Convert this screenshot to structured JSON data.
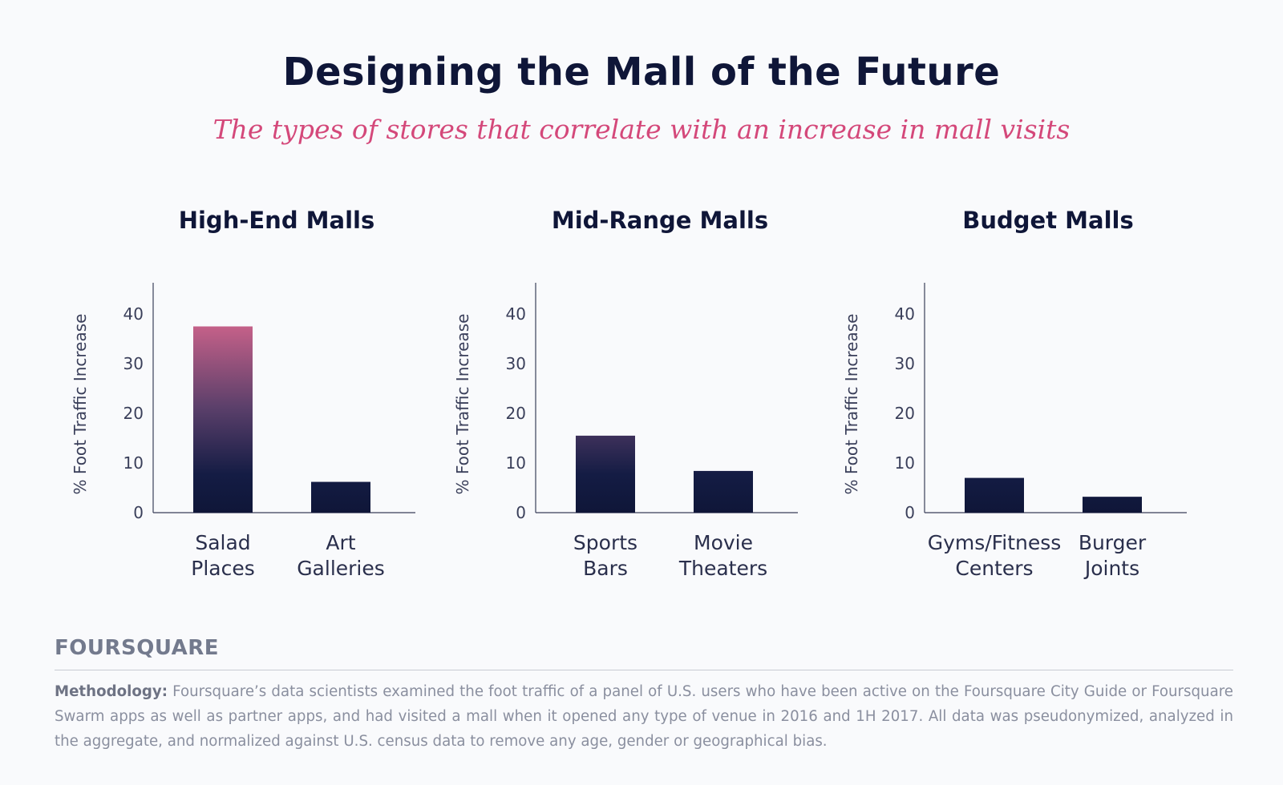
{
  "header": {
    "title": "Designing the Mall of the Future",
    "subtitle": "The types of stores that correlate with an increase in mall visits"
  },
  "colors": {
    "navy": "#0f1638",
    "pink": "#d4487a",
    "gradient_top_pink": "#c9628a",
    "gradient_bottom_navy": "#0f1638"
  },
  "chart_data": [
    {
      "type": "bar",
      "title": "High-End Malls",
      "ylabel": "% Foot Traffic Increase",
      "xlabel": "",
      "ylim": [
        0,
        45
      ],
      "yticks": [
        0,
        10,
        20,
        30,
        40
      ],
      "categories": [
        "Salad Places",
        "Art Galleries"
      ],
      "category_lines": [
        [
          "Salad",
          "Places"
        ],
        [
          "Art",
          "Galleries"
        ]
      ],
      "values": [
        37.5,
        6.2
      ],
      "grid": false
    },
    {
      "type": "bar",
      "title": "Mid-Range Malls",
      "ylabel": "% Foot Traffic Increase",
      "xlabel": "",
      "ylim": [
        0,
        45
      ],
      "yticks": [
        0,
        10,
        20,
        30,
        40
      ],
      "categories": [
        "Sports Bars",
        "Movie Theaters"
      ],
      "category_lines": [
        [
          "Sports",
          "Bars"
        ],
        [
          "Movie",
          "Theaters"
        ]
      ],
      "values": [
        15.5,
        8.4
      ],
      "grid": false
    },
    {
      "type": "bar",
      "title": "Budget Malls",
      "ylabel": "% Foot Traffic Increase",
      "xlabel": "",
      "ylim": [
        0,
        45
      ],
      "yticks": [
        0,
        10,
        20,
        30,
        40
      ],
      "categories": [
        "Gyms/Fitness Centers",
        "Burger Joints"
      ],
      "category_lines": [
        [
          "Gyms/Fitness",
          "Centers"
        ],
        [
          "Burger",
          "Joints"
        ]
      ],
      "values": [
        7.0,
        3.2
      ],
      "grid": false
    }
  ],
  "footer": {
    "logo_text": "FOURSQUARE",
    "methodology_label": "Methodology:",
    "methodology_text": "Foursquare’s data scientists examined the foot traffic of a panel of U.S. users who have been active on the Foursquare City Guide or Foursquare Swarm apps as well as partner apps, and had visited a mall when it opened any type of venue in 2016 and 1H 2017. All data was pseudonymized, analyzed in the aggregate, and normalized against U.S. census data to remove any age, gender or geographical bias."
  }
}
